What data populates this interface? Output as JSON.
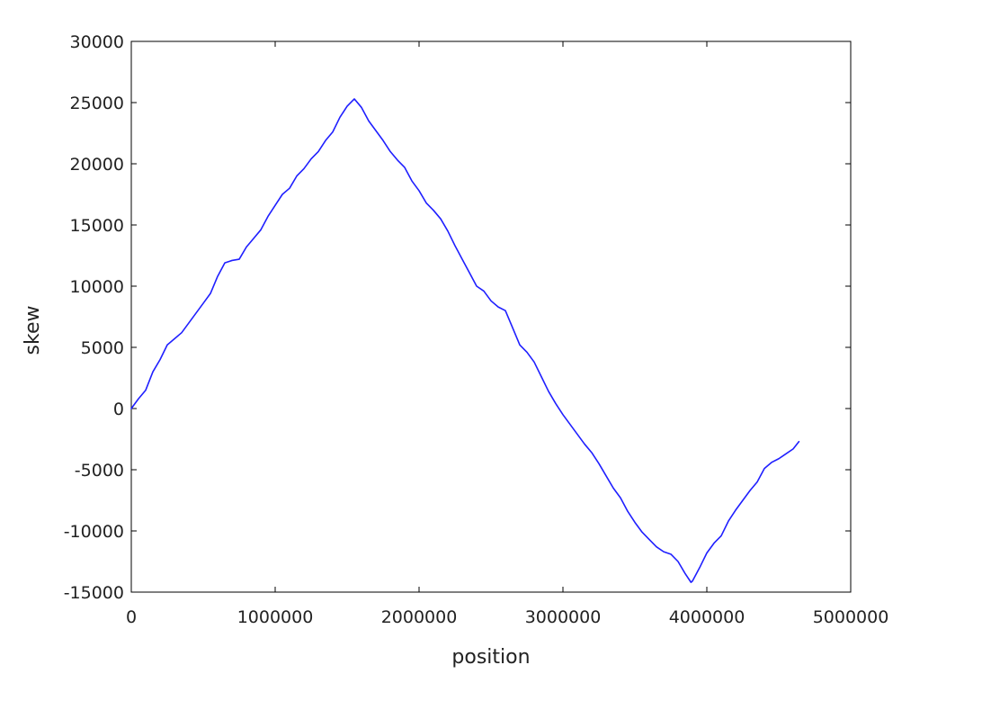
{
  "chart_data": {
    "type": "line",
    "title": "",
    "xlabel": "position",
    "ylabel": "skew",
    "xlim": [
      0,
      5000000
    ],
    "ylim": [
      -15000,
      30000
    ],
    "xticks": [
      0,
      1000000,
      2000000,
      3000000,
      4000000,
      5000000
    ],
    "yticks": [
      -15000,
      -10000,
      -5000,
      0,
      5000,
      10000,
      15000,
      20000,
      25000,
      30000
    ],
    "xtick_labels": [
      "0",
      "1000000",
      "2000000",
      "3000000",
      "4000000",
      "5000000"
    ],
    "ytick_labels": [
      "-15000",
      "-10000",
      "-5000",
      "0",
      "5000",
      "10000",
      "15000",
      "20000",
      "25000",
      "30000"
    ],
    "grid": false,
    "series_color": "#1f1fff",
    "series": [
      {
        "x": [
          0,
          50000,
          100000,
          150000,
          200000,
          250000,
          300000,
          350000,
          400000,
          450000,
          500000,
          550000,
          600000,
          650000,
          700000,
          750000,
          800000,
          850000,
          900000,
          950000,
          1000000,
          1050000,
          1100000,
          1150000,
          1200000,
          1250000,
          1300000,
          1350000,
          1400000,
          1450000,
          1500000,
          1550000,
          1600000,
          1650000,
          1700000,
          1750000,
          1800000,
          1850000,
          1900000,
          1950000,
          2000000,
          2050000,
          2100000,
          2150000,
          2200000,
          2250000,
          2300000,
          2350000,
          2400000,
          2450000,
          2500000,
          2550000,
          2600000,
          2650000,
          2700000,
          2750000,
          2800000,
          2850000,
          2900000,
          2950000,
          3000000,
          3050000,
          3100000,
          3150000,
          3200000,
          3250000,
          3300000,
          3350000,
          3400000,
          3450000,
          3500000,
          3550000,
          3600000,
          3650000,
          3700000,
          3750000,
          3800000,
          3850000,
          3890000,
          3900000,
          3950000,
          4000000,
          4050000,
          4100000,
          4150000,
          4200000,
          4250000,
          4300000,
          4350000,
          4400000,
          4450000,
          4500000,
          4550000,
          4600000,
          4640000
        ],
        "y": [
          0,
          800,
          1500,
          3000,
          4000,
          5200,
          5700,
          6200,
          7000,
          7800,
          8600,
          9400,
          10800,
          11900,
          12100,
          12200,
          13200,
          13900,
          14600,
          15700,
          16600,
          17500,
          18000,
          19000,
          19600,
          20400,
          21000,
          21900,
          22600,
          23800,
          24700,
          25300,
          24600,
          23500,
          22700,
          21900,
          21000,
          20300,
          19700,
          18600,
          17800,
          16800,
          16200,
          15500,
          14500,
          13300,
          12200,
          11100,
          10000,
          9600,
          8800,
          8300,
          8000,
          6600,
          5200,
          4600,
          3800,
          2600,
          1400,
          400,
          -500,
          -1300,
          -2100,
          -2900,
          -3600,
          -4500,
          -5500,
          -6500,
          -7300,
          -8400,
          -9300,
          -10100,
          -10700,
          -11300,
          -11700,
          -11900,
          -12500,
          -13500,
          -14200,
          -14100,
          -13000,
          -11800,
          -11000,
          -10400,
          -9200,
          -8300,
          -7500,
          -6700,
          -6000,
          -4900,
          -4400,
          -4100,
          -3700,
          -3300,
          -2700
        ]
      }
    ]
  }
}
